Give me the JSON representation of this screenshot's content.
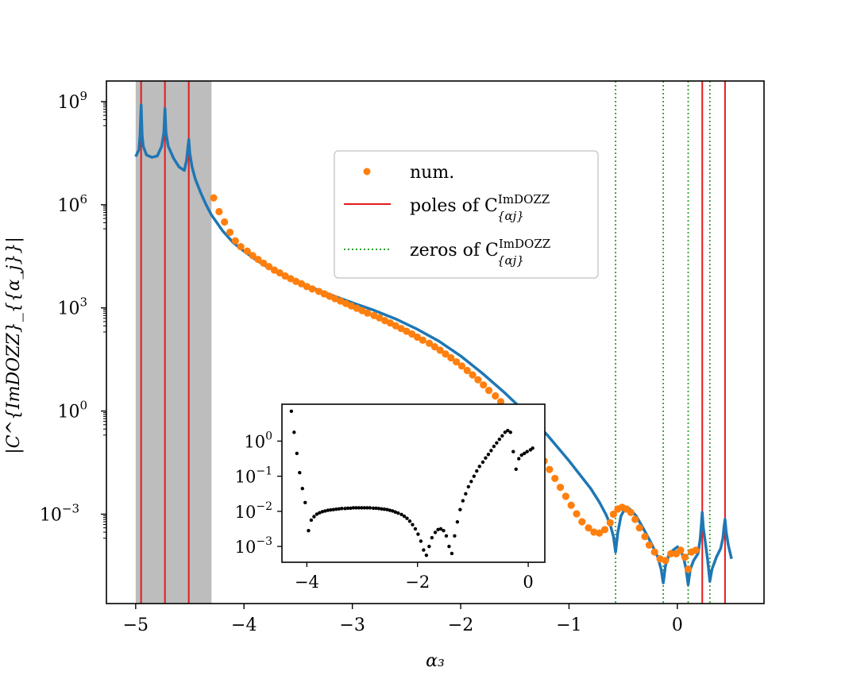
{
  "chart_data": {
    "type": "scatter",
    "title": "",
    "xlabel": "α₃",
    "ylabel": "|C^{ImDOZZ}_{{α_j}}|",
    "xlim": [
      -5.27,
      0.8
    ],
    "ylim_log10": [
      -5.6,
      9.6
    ],
    "yscale": "log",
    "xticks": [
      {
        "value": -5,
        "label": "−5"
      },
      {
        "value": -4,
        "label": "−4"
      },
      {
        "value": -3,
        "label": "−3"
      },
      {
        "value": -2,
        "label": "−2"
      },
      {
        "value": -1,
        "label": "−1"
      },
      {
        "value": 0,
        "label": "0"
      }
    ],
    "yticks": [
      {
        "exp": 9,
        "label_base": "10",
        "label_exp": "9"
      },
      {
        "exp": 6,
        "label_base": "10",
        "label_exp": "6"
      },
      {
        "exp": 3,
        "label_base": "10",
        "label_exp": "3"
      },
      {
        "exp": 0,
        "label_base": "10",
        "label_exp": "0"
      },
      {
        "exp": -3,
        "label_base": "10",
        "label_exp": "−3"
      }
    ],
    "shaded_region": {
      "x_from": -5.0,
      "x_to": -4.3,
      "color": "#bdbdbd"
    },
    "legend": {
      "placement": "upper-center",
      "entries": [
        {
          "label": "num.",
          "style": "marker",
          "color": "#ff7f0e"
        },
        {
          "label": "poles of C",
          "sup": "ImDOZZ",
          "sub": "{αj}",
          "style": "solid",
          "color": "#e31a1c"
        },
        {
          "label": "zeros of C",
          "sup": "ImDOZZ",
          "sub": "{αj}",
          "style": "dotted",
          "color": "#2ca02c"
        }
      ]
    },
    "poles_x": [
      -4.95,
      -4.73,
      -4.51,
      0.23,
      0.44
    ],
    "zeros_x": [
      -0.57,
      -0.13,
      0.1,
      0.3
    ],
    "analytic_series": {
      "name": "analytic",
      "color": "#1f77b4",
      "x": [
        -5.0,
        -4.97,
        -4.96,
        -4.95,
        -4.94,
        -4.93,
        -4.9,
        -4.85,
        -4.8,
        -4.76,
        -4.74,
        -4.73,
        -4.72,
        -4.7,
        -4.65,
        -4.6,
        -4.55,
        -4.53,
        -4.52,
        -4.51,
        -4.5,
        -4.48,
        -4.45,
        -4.4,
        -4.35,
        -4.3,
        -4.2,
        -4.1,
        -4.0,
        -3.9,
        -3.8,
        -3.6,
        -3.4,
        -3.2,
        -3.0,
        -2.8,
        -2.6,
        -2.4,
        -2.2,
        -2.0,
        -1.8,
        -1.6,
        -1.4,
        -1.2,
        -1.0,
        -0.9,
        -0.8,
        -0.72,
        -0.66,
        -0.62,
        -0.59,
        -0.57,
        -0.55,
        -0.52,
        -0.48,
        -0.44,
        -0.38,
        -0.3,
        -0.24,
        -0.18,
        -0.15,
        -0.13,
        -0.11,
        -0.08,
        -0.04,
        0.0,
        0.03,
        0.06,
        0.08,
        0.1,
        0.12,
        0.15,
        0.19,
        0.21,
        0.22,
        0.23,
        0.24,
        0.26,
        0.28,
        0.3,
        0.32,
        0.36,
        0.4,
        0.42,
        0.43,
        0.44,
        0.45,
        0.47,
        0.5
      ],
      "log10_y": [
        7.4,
        7.6,
        8.0,
        8.9,
        8.0,
        7.7,
        7.45,
        7.38,
        7.42,
        7.7,
        8.1,
        8.8,
        8.1,
        7.7,
        7.35,
        7.1,
        7.0,
        7.3,
        7.6,
        7.9,
        7.5,
        7.1,
        6.75,
        6.35,
        6.0,
        5.7,
        5.25,
        4.9,
        4.65,
        4.42,
        4.22,
        3.9,
        3.62,
        3.38,
        3.15,
        2.93,
        2.68,
        2.38,
        2.03,
        1.6,
        1.1,
        0.55,
        -0.05,
        -0.7,
        -1.45,
        -1.85,
        -2.25,
        -2.65,
        -3.0,
        -3.3,
        -3.65,
        -4.1,
        -3.55,
        -3.05,
        -2.82,
        -2.85,
        -3.05,
        -3.5,
        -3.85,
        -4.25,
        -4.6,
        -5.0,
        -4.5,
        -4.2,
        -4.05,
        -3.95,
        -4.05,
        -4.3,
        -4.6,
        -5.05,
        -4.6,
        -4.35,
        -4.15,
        -3.75,
        -3.35,
        -2.95,
        -3.4,
        -3.85,
        -4.35,
        -4.95,
        -4.6,
        -4.25,
        -4.0,
        -3.7,
        -3.4,
        -3.15,
        -3.5,
        -3.9,
        -4.3
      ]
    },
    "numeric_series": {
      "name": "num.",
      "color": "#ff7f0e",
      "x": [
        -4.28,
        -4.23,
        -4.18,
        -4.13,
        -4.08,
        -4.03,
        -3.97,
        -3.92,
        -3.87,
        -3.82,
        -3.77,
        -3.72,
        -3.67,
        -3.62,
        -3.57,
        -3.52,
        -3.47,
        -3.42,
        -3.37,
        -3.31,
        -3.26,
        -3.21,
        -3.16,
        -3.11,
        -3.06,
        -3.01,
        -2.96,
        -2.91,
        -2.86,
        -2.8,
        -2.75,
        -2.7,
        -2.65,
        -2.6,
        -2.55,
        -2.5,
        -2.45,
        -2.4,
        -2.35,
        -2.29,
        -2.24,
        -2.19,
        -2.14,
        -2.09,
        -2.04,
        -1.99,
        -1.94,
        -1.89,
        -1.84,
        -1.79,
        -1.74,
        -1.68,
        -1.63,
        -1.58,
        -1.53,
        -1.48,
        -1.43,
        -1.38,
        -1.33,
        -1.28,
        -1.23,
        -1.18,
        -1.13,
        -1.08,
        -1.03,
        -0.98,
        -0.93,
        -0.88,
        -0.82,
        -0.77,
        -0.72,
        -0.67,
        -0.62,
        -0.59,
        -0.55,
        -0.51,
        -0.47,
        -0.43,
        -0.39,
        -0.35,
        -0.3,
        -0.26,
        -0.21,
        -0.16,
        -0.11,
        -0.06,
        -0.01,
        0.03,
        0.07,
        0.1,
        0.13,
        0.17
      ],
      "log10_y": [
        6.2,
        5.8,
        5.5,
        5.2,
        4.95,
        4.78,
        4.65,
        4.52,
        4.41,
        4.3,
        4.2,
        4.1,
        4.02,
        3.93,
        3.85,
        3.77,
        3.7,
        3.62,
        3.55,
        3.48,
        3.41,
        3.34,
        3.27,
        3.2,
        3.13,
        3.06,
        2.99,
        2.92,
        2.85,
        2.78,
        2.71,
        2.63,
        2.56,
        2.48,
        2.4,
        2.32,
        2.24,
        2.15,
        2.06,
        1.97,
        1.87,
        1.77,
        1.66,
        1.55,
        1.43,
        1.31,
        1.18,
        1.05,
        0.91,
        0.76,
        0.6,
        0.44,
        0.27,
        0.09,
        -0.1,
        -0.3,
        -0.51,
        -0.73,
        -0.96,
        -1.2,
        -1.45,
        -1.7,
        -1.96,
        -2.22,
        -2.48,
        -2.74,
        -2.99,
        -3.22,
        -3.4,
        -3.52,
        -3.55,
        -3.45,
        -3.25,
        -3.0,
        -2.85,
        -2.8,
        -2.85,
        -2.95,
        -3.15,
        -3.4,
        -3.65,
        -3.9,
        -4.1,
        -4.3,
        -4.35,
        -4.15,
        -4.15,
        -4.05,
        -4.25,
        -4.6,
        -4.1,
        -4.05
      ]
    },
    "inset": {
      "type": "scatter",
      "color": "#000000",
      "xlim": [
        -4.45,
        0.3
      ],
      "ylim_log10": [
        -3.45,
        1.05
      ],
      "xticks": [
        {
          "value": -4,
          "label": "−4"
        },
        {
          "value": -2,
          "label": "−2"
        },
        {
          "value": 0,
          "label": "0"
        }
      ],
      "yticks": [
        {
          "exp": 0,
          "label_base": "10",
          "label_exp": "0"
        },
        {
          "exp": -1,
          "label_base": "10",
          "label_exp": "−1"
        },
        {
          "exp": -2,
          "label_base": "10",
          "label_exp": "−2"
        },
        {
          "exp": -3,
          "label_base": "10",
          "label_exp": "−3"
        }
      ],
      "x": [
        -4.28,
        -4.23,
        -4.18,
        -4.13,
        -4.08,
        -4.03,
        -3.97,
        -3.92,
        -3.87,
        -3.82,
        -3.77,
        -3.72,
        -3.67,
        -3.62,
        -3.57,
        -3.52,
        -3.47,
        -3.42,
        -3.37,
        -3.31,
        -3.26,
        -3.21,
        -3.16,
        -3.11,
        -3.06,
        -3.01,
        -2.96,
        -2.91,
        -2.86,
        -2.8,
        -2.75,
        -2.7,
        -2.65,
        -2.6,
        -2.55,
        -2.5,
        -2.45,
        -2.4,
        -2.35,
        -2.29,
        -2.24,
        -2.19,
        -2.14,
        -2.09,
        -2.04,
        -1.99,
        -1.94,
        -1.89,
        -1.84,
        -1.79,
        -1.74,
        -1.68,
        -1.63,
        -1.58,
        -1.53,
        -1.48,
        -1.43,
        -1.38,
        -1.33,
        -1.28,
        -1.23,
        -1.18,
        -1.13,
        -1.08,
        -1.03,
        -0.98,
        -0.93,
        -0.88,
        -0.82,
        -0.77,
        -0.72,
        -0.67,
        -0.62,
        -0.57,
        -0.52,
        -0.47,
        -0.42,
        -0.37,
        -0.32,
        -0.27,
        -0.22,
        -0.17,
        -0.12,
        -0.07,
        -0.02,
        0.04,
        0.08
      ],
      "log10_y": [
        0.85,
        0.25,
        -0.35,
        -0.9,
        -1.35,
        -1.75,
        -2.55,
        -2.25,
        -2.15,
        -2.08,
        -2.04,
        -2.01,
        -1.99,
        -1.97,
        -1.96,
        -1.95,
        -1.94,
        -1.93,
        -1.92,
        -1.92,
        -1.91,
        -1.91,
        -1.9,
        -1.9,
        -1.9,
        -1.9,
        -1.9,
        -1.9,
        -1.9,
        -1.91,
        -1.91,
        -1.92,
        -1.93,
        -1.94,
        -1.95,
        -1.97,
        -1.99,
        -2.02,
        -2.05,
        -2.09,
        -2.14,
        -2.2,
        -2.28,
        -2.38,
        -2.5,
        -2.65,
        -2.85,
        -3.1,
        -3.25,
        -3.0,
        -2.75,
        -2.6,
        -2.52,
        -2.5,
        -2.55,
        -2.7,
        -3.0,
        -3.2,
        -2.7,
        -2.3,
        -1.95,
        -1.7,
        -1.5,
        -1.3,
        -1.15,
        -1.0,
        -0.85,
        -0.72,
        -0.6,
        -0.48,
        -0.38,
        -0.27,
        -0.15,
        -0.05,
        0.05,
        0.15,
        0.25,
        0.3,
        0.25,
        -0.3,
        -0.8,
        -0.5,
        -0.4,
        -0.35,
        -0.3,
        -0.25,
        -0.2
      ]
    }
  }
}
